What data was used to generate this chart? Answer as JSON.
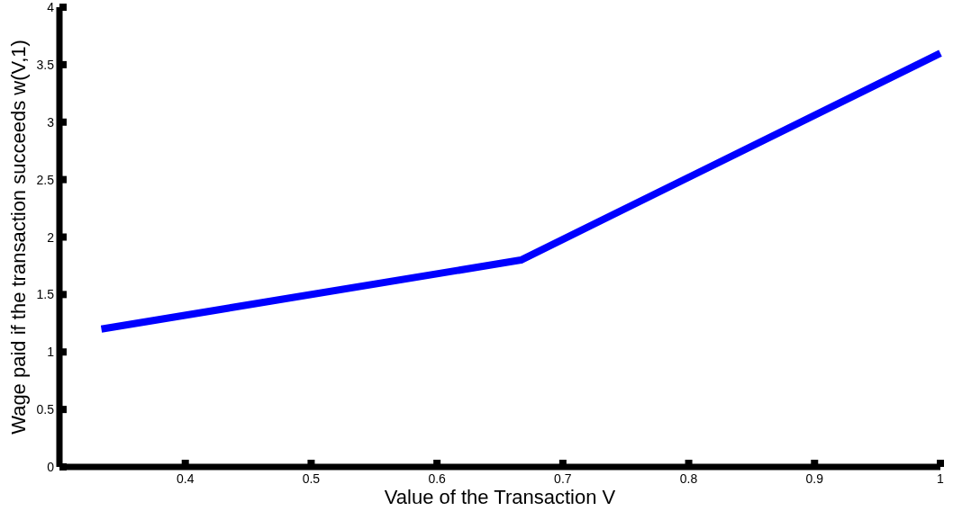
{
  "chart_data": {
    "type": "line",
    "xlabel": "Value of the Transaction V",
    "ylabel": "Wage paid if the transaction succeeds w(V,1)",
    "x": [
      0.3333,
      0.6667,
      1
    ],
    "series": [
      {
        "color": "#0000ff",
        "values": [
          1.2,
          1.8,
          3.6
        ]
      }
    ],
    "xlim": [
      0.3,
      1
    ],
    "xticks": [
      0.4,
      0.5,
      0.6,
      0.7,
      0.8,
      0.9,
      1
    ],
    "ylim": [
      0,
      4
    ],
    "yticks": [
      0,
      0.5,
      1,
      1.5,
      2,
      2.5,
      3,
      3.5,
      4
    ],
    "grid": false,
    "marker": "none",
    "line_style": "solid"
  }
}
